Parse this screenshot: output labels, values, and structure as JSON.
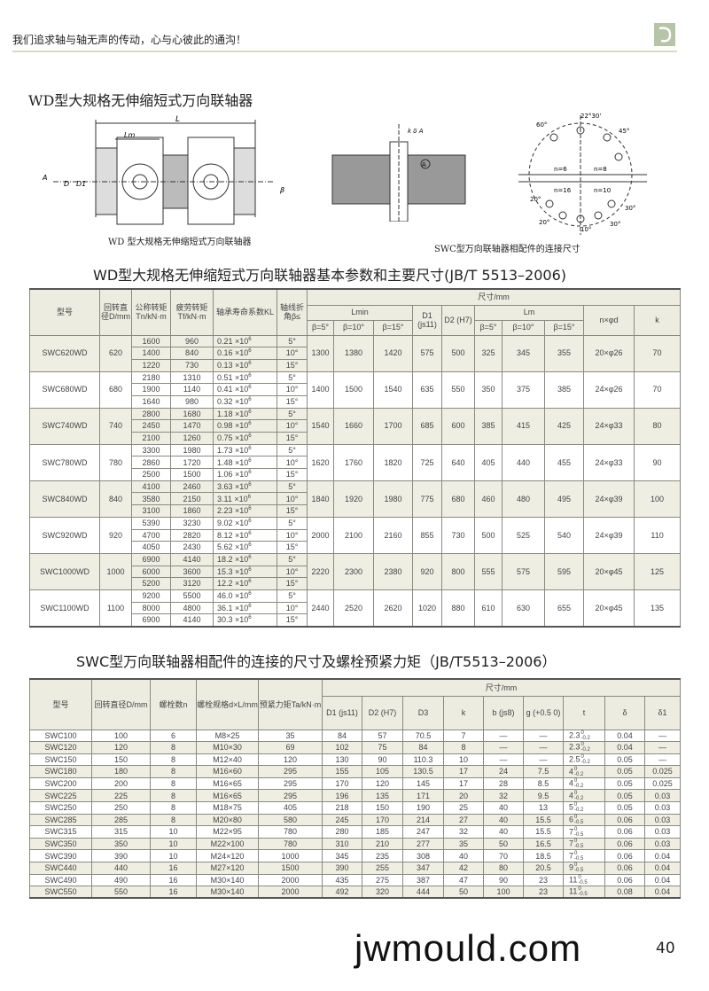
{
  "header": {
    "slogan": "我们追求轴与轴无声的传动，心与心彼此的通沟！",
    "logo_color": "#b7c4a8"
  },
  "section1": {
    "title": "WD型大规格无伸缩短式万向联轴器",
    "caption_left": "WD 型大规格无伸缩短式万向联轴器",
    "caption_right": "SWC型万向联轴器相配件的连接尺寸",
    "diagram_labels": [
      "L",
      "Lm",
      "A",
      "D",
      "D1",
      "β",
      "k",
      "δ",
      "A",
      "g",
      "b",
      "D2",
      "D1",
      "δ1",
      "60°",
      "22°30'",
      "45°",
      "n=6",
      "n=8",
      "n=16",
      "n=10",
      "20°",
      "20°",
      "10°",
      "30°",
      "30°"
    ]
  },
  "table1": {
    "title": "WD型大规格无伸缩短式万向联轴器基本参数和主要尺寸(JB/T 5513–2006)",
    "headers": {
      "model": "型号",
      "D": "回转直径D/mm",
      "Tn": "公称转矩Tn/kN·m",
      "Tf": "疲劳转矩Tf/kN·m",
      "KL": "轴承寿命系数KL",
      "beta": "轴线折角β≤",
      "dims": "尺寸/mm",
      "Lmin": "Lmin",
      "D1": "D1 (js11)",
      "D2": "D2 (H7)",
      "Lm": "Lm",
      "b5": "β=5°",
      "b10": "β=10°",
      "b15": "β=15°",
      "nd": "n×φd",
      "k": "k"
    },
    "rows": [
      {
        "model": "SWC620WD",
        "D": "620",
        "Tn": [
          "1600",
          "1400",
          "1220"
        ],
        "Tf": [
          "960",
          "840",
          "730"
        ],
        "KL": [
          "0.21",
          "0.16",
          "0.13"
        ],
        "beta": [
          "5°",
          "10°",
          "15°"
        ],
        "Lmin": [
          "1300",
          "1380",
          "1420"
        ],
        "D1": "575",
        "D2": "500",
        "Lm": [
          "325",
          "345",
          "355"
        ],
        "nd": "20×φ26",
        "k": "70"
      },
      {
        "model": "SWC680WD",
        "D": "680",
        "Tn": [
          "2180",
          "1900",
          "1640"
        ],
        "Tf": [
          "1310",
          "1140",
          "980"
        ],
        "KL": [
          "0.51",
          "0.41",
          "0.32"
        ],
        "beta": [
          "5°",
          "10°",
          "15°"
        ],
        "Lmin": [
          "1400",
          "1500",
          "1540"
        ],
        "D1": "635",
        "D2": "550",
        "Lm": [
          "350",
          "375",
          "385"
        ],
        "nd": "24×φ26",
        "k": "70"
      },
      {
        "model": "SWC740WD",
        "D": "740",
        "Tn": [
          "2800",
          "2450",
          "2100"
        ],
        "Tf": [
          "1680",
          "1470",
          "1260"
        ],
        "KL": [
          "1.18",
          "0.98",
          "0.75"
        ],
        "beta": [
          "5°",
          "10°",
          "15°"
        ],
        "Lmin": [
          "1540",
          "1660",
          "1700"
        ],
        "D1": "685",
        "D2": "600",
        "Lm": [
          "385",
          "415",
          "425"
        ],
        "nd": "24×φ33",
        "k": "80"
      },
      {
        "model": "SWC780WD",
        "D": "780",
        "Tn": [
          "3300",
          "2860",
          "2500"
        ],
        "Tf": [
          "1980",
          "1720",
          "1500"
        ],
        "KL": [
          "1.73",
          "1.48",
          "1.06"
        ],
        "beta": [
          "5°",
          "10°",
          "15°"
        ],
        "Lmin": [
          "1620",
          "1760",
          "1820"
        ],
        "D1": "725",
        "D2": "640",
        "Lm": [
          "405",
          "440",
          "455"
        ],
        "nd": "24×φ33",
        "k": "90"
      },
      {
        "model": "SWC840WD",
        "D": "840",
        "Tn": [
          "4100",
          "3580",
          "3100"
        ],
        "Tf": [
          "2460",
          "2150",
          "1860"
        ],
        "KL": [
          "3.63",
          "3.11",
          "2.23"
        ],
        "beta": [
          "5°",
          "10°",
          "15°"
        ],
        "Lmin": [
          "1840",
          "1920",
          "1980"
        ],
        "D1": "775",
        "D2": "680",
        "Lm": [
          "460",
          "480",
          "495"
        ],
        "nd": "24×φ39",
        "k": "100"
      },
      {
        "model": "SWC920WD",
        "D": "920",
        "Tn": [
          "5390",
          "4700",
          "4050"
        ],
        "Tf": [
          "3230",
          "2820",
          "2430"
        ],
        "KL": [
          "9.02",
          "8.12",
          "5.62"
        ],
        "beta": [
          "5°",
          "10°",
          "15°"
        ],
        "Lmin": [
          "2000",
          "2100",
          "2160"
        ],
        "D1": "855",
        "D2": "730",
        "Lm": [
          "500",
          "525",
          "540"
        ],
        "nd": "24×φ39",
        "k": "110"
      },
      {
        "model": "SWC1000WD",
        "D": "1000",
        "Tn": [
          "6900",
          "6000",
          "5200"
        ],
        "Tf": [
          "4140",
          "3600",
          "3120"
        ],
        "KL": [
          "18.2",
          "15.3",
          "12.2"
        ],
        "beta": [
          "5°",
          "10°",
          "15°"
        ],
        "Lmin": [
          "2220",
          "2300",
          "2380"
        ],
        "D1": "920",
        "D2": "800",
        "Lm": [
          "555",
          "575",
          "595"
        ],
        "nd": "20×φ45",
        "k": "125"
      },
      {
        "model": "SWC1100WD",
        "D": "1100",
        "Tn": [
          "9200",
          "8000",
          "6900"
        ],
        "Tf": [
          "5500",
          "4800",
          "4140"
        ],
        "KL": [
          "46.0",
          "36.1",
          "30.3"
        ],
        "beta": [
          "5°",
          "10°",
          "15°"
        ],
        "Lmin": [
          "2440",
          "2520",
          "2620"
        ],
        "D1": "1020",
        "D2": "880",
        "Lm": [
          "610",
          "630",
          "655"
        ],
        "nd": "20×φ45",
        "k": "135"
      }
    ],
    "kl_suffix": "×10",
    "kl_exp": "6"
  },
  "table2": {
    "title": "SWC型万向联轴器相配件的连接的尺寸及螺栓预紧力矩（JB/T5513–2006）",
    "headers": {
      "model": "型号",
      "D": "回转直径D/mm",
      "n": "螺栓数n",
      "dL": "螺栓规格d×L/mm",
      "Ta": "预紧力矩Ta/kN·m",
      "dims": "尺寸/mm",
      "D1": "D1 (js11)",
      "D2": "D2 (H7)",
      "D3": "D3",
      "k": "k",
      "b": "b (js8)",
      "g": "g (+0.5 0)",
      "t": "t",
      "d": "δ",
      "d1": "δ1"
    },
    "rows": [
      [
        "SWC100",
        "100",
        "6",
        "M8×25",
        "35",
        "84",
        "57",
        "70.5",
        "7",
        "—",
        "—",
        [
          "2.3",
          "0",
          "-0.2"
        ],
        "0.04",
        "—"
      ],
      [
        "SWC120",
        "120",
        "8",
        "M10×30",
        "69",
        "102",
        "75",
        "84",
        "8",
        "—",
        "—",
        [
          "2.3",
          "0",
          "-0.2"
        ],
        "0.04",
        "—"
      ],
      [
        "SWC150",
        "150",
        "8",
        "M12×40",
        "120",
        "130",
        "90",
        "110.3",
        "10",
        "—",
        "—",
        [
          "2.5",
          "0",
          "-0.2"
        ],
        "0.05",
        "—"
      ],
      [
        "SWC180",
        "180",
        "8",
        "M16×60",
        "295",
        "155",
        "105",
        "130.5",
        "17",
        "24",
        "7.5",
        [
          "4",
          "0",
          "-0.2"
        ],
        "0.05",
        "0.025"
      ],
      [
        "SWC200",
        "200",
        "8",
        "M16×65",
        "295",
        "170",
        "120",
        "145",
        "17",
        "28",
        "8.5",
        [
          "4",
          "0",
          "-0.2"
        ],
        "0.05",
        "0.025"
      ],
      [
        "SWC225",
        "225",
        "8",
        "M16×65",
        "295",
        "196",
        "135",
        "171",
        "20",
        "32",
        "9.5",
        [
          "4",
          "0",
          "-0.2"
        ],
        "0.05",
        "0.03"
      ],
      [
        "SWC250",
        "250",
        "8",
        "M18×75",
        "405",
        "218",
        "150",
        "190",
        "25",
        "40",
        "13",
        [
          "5",
          "0",
          "-0.2"
        ],
        "0.05",
        "0.03"
      ],
      [
        "SWC285",
        "285",
        "8",
        "M20×80",
        "580",
        "245",
        "170",
        "214",
        "27",
        "40",
        "15.5",
        [
          "6",
          "0",
          "-0.5"
        ],
        "0.06",
        "0.03"
      ],
      [
        "SWC315",
        "315",
        "10",
        "M22×95",
        "780",
        "280",
        "185",
        "247",
        "32",
        "40",
        "15.5",
        [
          "7",
          "0",
          "-0.5"
        ],
        "0.06",
        "0.03"
      ],
      [
        "SWC350",
        "350",
        "10",
        "M22×100",
        "780",
        "310",
        "210",
        "277",
        "35",
        "50",
        "16.5",
        [
          "7",
          "0",
          "-0.5"
        ],
        "0.06",
        "0.03"
      ],
      [
        "SWC390",
        "390",
        "10",
        "M24×120",
        "1000",
        "345",
        "235",
        "308",
        "40",
        "70",
        "18.5",
        [
          "7",
          "0",
          "-0.5"
        ],
        "0.06",
        "0.04"
      ],
      [
        "SWC440",
        "440",
        "16",
        "M27×120",
        "1500",
        "390",
        "255",
        "347",
        "42",
        "80",
        "20.5",
        [
          "9",
          "0",
          "-0.5"
        ],
        "0.06",
        "0.04"
      ],
      [
        "SWC490",
        "490",
        "16",
        "M30×140",
        "2000",
        "435",
        "275",
        "387",
        "47",
        "90",
        "23",
        [
          "11",
          "0",
          "-0.5"
        ],
        "0.06",
        "0.04"
      ],
      [
        "SWC550",
        "550",
        "16",
        "M30×140",
        "2000",
        "492",
        "320",
        "444",
        "50",
        "100",
        "23",
        [
          "11",
          "0",
          "-0.5"
        ],
        "0.08",
        "0.04"
      ]
    ]
  },
  "footer": {
    "site": "jwmould.com",
    "page": "40"
  }
}
